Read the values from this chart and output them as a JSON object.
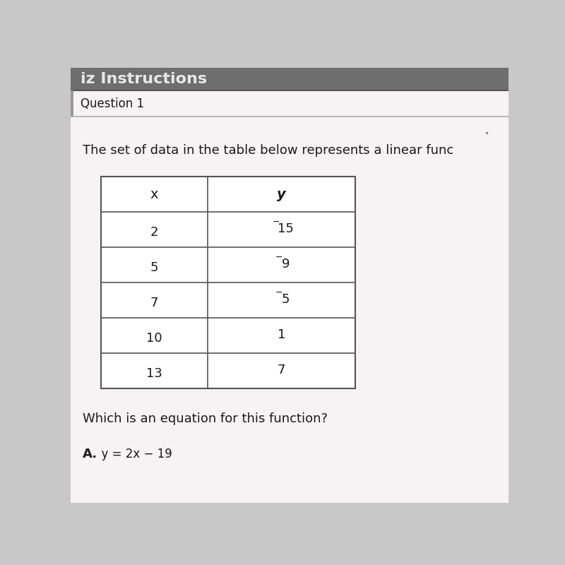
{
  "header_title": "iz Instructions",
  "question_label": "Question 1",
  "question_text": "The set of data in the table below represents a linear func",
  "table_headers": [
    "x",
    "y"
  ],
  "table_data": [
    [
      "2",
      "15",
      true
    ],
    [
      "5",
      "9",
      true
    ],
    [
      "7",
      "5",
      true
    ],
    [
      "10",
      "1",
      false
    ],
    [
      "13",
      "7",
      false
    ]
  ],
  "follow_text": "Which is an equation for this function?",
  "answer_bold": "A.",
  "answer_rest": "  y = 2x − 19",
  "bg_color": "#c8c8c8",
  "page_bg": "#e0dede",
  "white_color": "#f5f3f3",
  "header_bg": "#6e6e6e",
  "header_text_color": "#e8e8e8",
  "border_color": "#555555",
  "text_color": "#1a1a1a",
  "divider_color": "#aaaaaa",
  "dot_color": "#888888"
}
